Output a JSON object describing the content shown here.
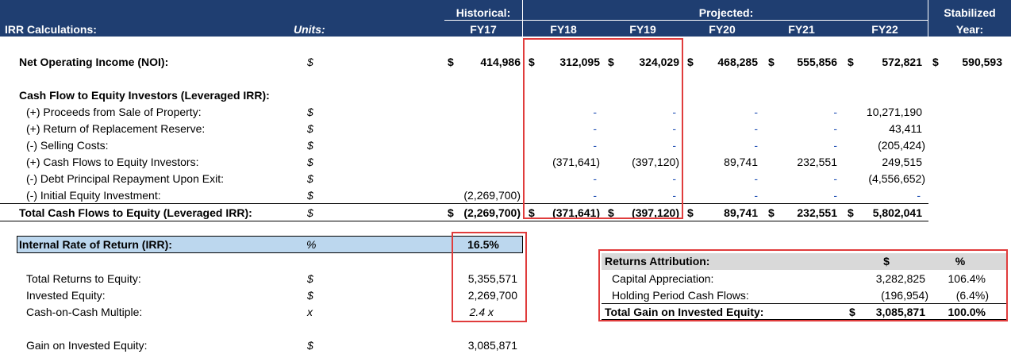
{
  "header": {
    "title": "IRR Calculations:",
    "units_label": "Units:",
    "historical_label": "Historical:",
    "projected_label": "Projected:",
    "stabilized_label": "Stabilized",
    "year_label": "Year:",
    "years": [
      "FY17",
      "FY18",
      "FY19",
      "FY20",
      "FY21",
      "FY22"
    ]
  },
  "noi": {
    "label": "Net Operating Income (NOI):",
    "unit": "$",
    "values": [
      "414,986",
      "312,095",
      "324,029",
      "468,285",
      "555,856",
      "572,821",
      "590,593"
    ]
  },
  "cf_section": {
    "title": "Cash Flow to Equity Investors (Leveraged IRR):",
    "rows": [
      {
        "label": "(+) Proceeds from Sale of Property:",
        "unit": "$",
        "values": [
          "",
          "-",
          "-",
          "-",
          "-",
          "10,271,190"
        ]
      },
      {
        "label": "(+) Return of Replacement Reserve:",
        "unit": "$",
        "values": [
          "",
          "-",
          "-",
          "-",
          "-",
          "43,411"
        ]
      },
      {
        "label": "(-) Selling Costs:",
        "unit": "$",
        "values": [
          "",
          "-",
          "-",
          "-",
          "-",
          "(205,424)"
        ]
      },
      {
        "label": "(+) Cash Flows to Equity Investors:",
        "unit": "$",
        "values": [
          "",
          "(371,641)",
          "(397,120)",
          "89,741",
          "232,551",
          "249,515"
        ]
      },
      {
        "label": "(-) Debt Principal Repayment Upon Exit:",
        "unit": "$",
        "values": [
          "",
          "-",
          "-",
          "-",
          "-",
          "(4,556,652)"
        ]
      },
      {
        "label": "(-) Initial Equity Investment:",
        "unit": "$",
        "values": [
          "(2,269,700)",
          "-",
          "-",
          "-",
          "-",
          "-"
        ]
      }
    ],
    "total": {
      "label": "Total Cash Flows to Equity (Leveraged IRR):",
      "unit": "$",
      "values": [
        "(2,269,700)",
        "(371,641)",
        "(397,120)",
        "89,741",
        "232,551",
        "5,802,041"
      ]
    }
  },
  "dollar_sign": "$",
  "irr": {
    "label": "Internal Rate of Return (IRR):",
    "unit": "%",
    "value": "16.5%"
  },
  "returns": [
    {
      "label": "Total Returns to Equity:",
      "unit": "$",
      "value": "5,355,571"
    },
    {
      "label": "Invested Equity:",
      "unit": "$",
      "value": "2,269,700"
    },
    {
      "label": "Cash-on-Cash Multiple:",
      "unit": "x",
      "value": "2.4 x"
    }
  ],
  "gain": {
    "label": "Gain on Invested Equity:",
    "unit": "$",
    "value": "3,085,871"
  },
  "attribution": {
    "title": "Returns Attribution:",
    "col_dollar": "$",
    "col_pct": "%",
    "rows": [
      {
        "label": "Capital Appreciation:",
        "value": "3,282,825",
        "pct": "106.4%"
      },
      {
        "label": "Holding Period Cash Flows:",
        "value": "(196,954)",
        "pct": "(6.4%)"
      }
    ],
    "total": {
      "label": "Total Gain on Invested Equity:",
      "value": "3,085,871",
      "pct": "100.0%"
    }
  },
  "colors": {
    "header_bg": "#1f3e71",
    "highlight_border": "#e03c3c",
    "irr_fill": "#bcd7ee",
    "dash_blue": "#1f4fb4"
  }
}
